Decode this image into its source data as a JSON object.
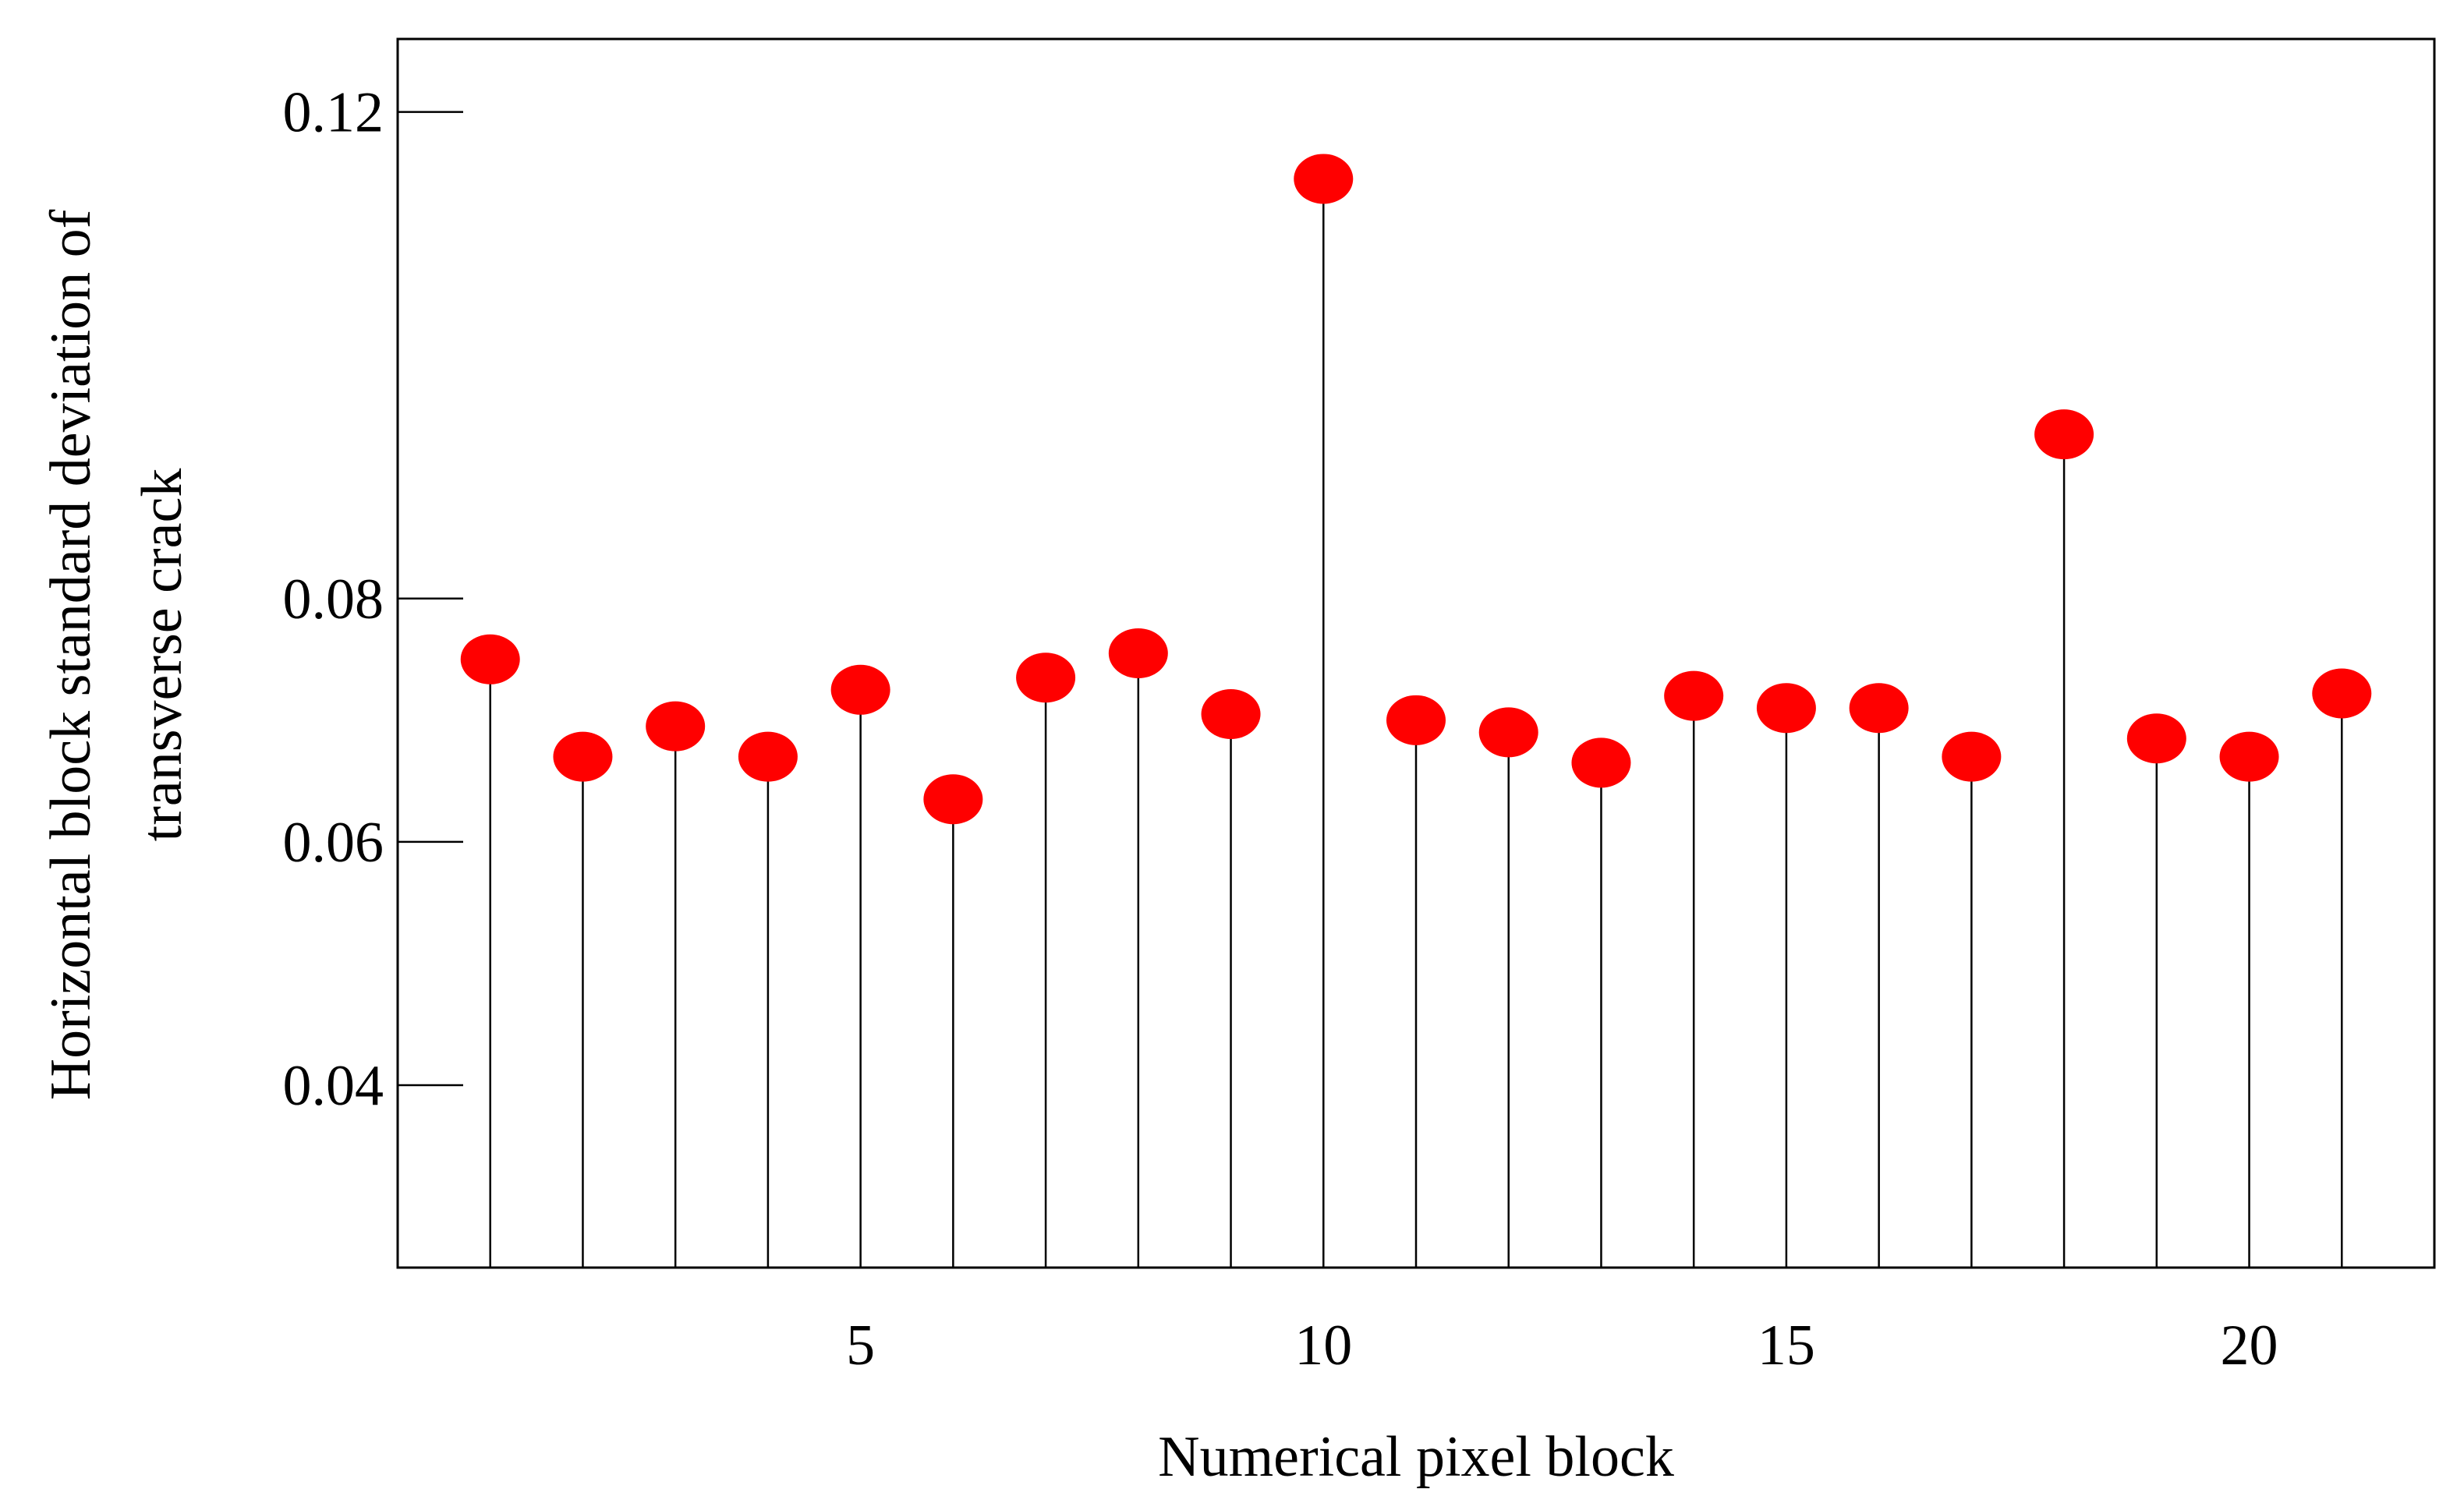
{
  "chart_data": {
    "type": "scatter",
    "style": "stem",
    "title": "",
    "xlabel": "Numerical pixel block",
    "ylabel_lines": [
      "Horizontal block standard deviation of",
      "transverse crack"
    ],
    "xlim": [
      0,
      22
    ],
    "ylim": [
      0.025,
      0.126
    ],
    "xticks": [
      5,
      10,
      15,
      20
    ],
    "yticks": [
      0.04,
      0.06,
      0.08,
      0.12
    ],
    "ytick_labels": [
      "0.04",
      "0.06",
      "0.08",
      "0.12"
    ],
    "grid": false,
    "legend": "none",
    "marker_color": "#ff0000",
    "stem_color": "#000000",
    "x": [
      1,
      2,
      3,
      4,
      5,
      6,
      7,
      8,
      9,
      10,
      11,
      12,
      13,
      14,
      15,
      16,
      17,
      18,
      19,
      20,
      21
    ],
    "y": [
      0.075,
      0.067,
      0.0695,
      0.067,
      0.0725,
      0.0635,
      0.0735,
      0.0755,
      0.0705,
      0.1145,
      0.07,
      0.069,
      0.0665,
      0.072,
      0.071,
      0.071,
      0.067,
      0.0935,
      0.0685,
      0.067,
      0.0722
    ]
  }
}
